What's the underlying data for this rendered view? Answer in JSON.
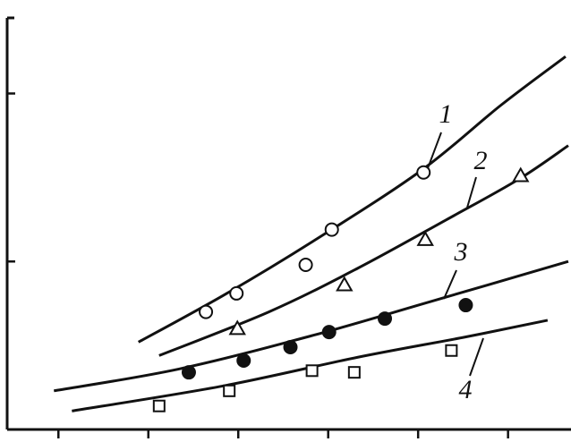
{
  "chart_data": {
    "type": "scatter",
    "xlim": [
      0.43,
      6.7
    ],
    "ylim": [
      0,
      2.45
    ],
    "xticks": [
      1,
      2,
      3,
      4,
      5,
      6
    ],
    "yticks": [
      1,
      2
    ],
    "color": "#111",
    "series": [
      {
        "name": "1",
        "marker": "circle",
        "filled": false,
        "x": [
          2.64,
          2.98,
          3.75,
          4.04,
          5.06
        ],
        "values": [
          0.7,
          0.81,
          0.98,
          1.19,
          1.53
        ],
        "fit_x": [
          1.89,
          2.84,
          3.83,
          5.03,
          5.92,
          6.64
        ],
        "fit_values": [
          0.52,
          0.8,
          1.12,
          1.54,
          1.93,
          2.22
        ]
      },
      {
        "name": "2",
        "marker": "triangle",
        "filled": false,
        "x": [
          2.99,
          4.18,
          5.08,
          6.14
        ],
        "values": [
          0.6,
          0.86,
          1.13,
          1.51
        ],
        "fit_x": [
          2.12,
          3.34,
          4.33,
          5.32,
          6.12,
          6.67
        ],
        "fit_values": [
          0.44,
          0.7,
          0.96,
          1.25,
          1.49,
          1.69
        ]
      },
      {
        "name": "3",
        "marker": "circle",
        "filled": true,
        "x": [
          2.45,
          3.06,
          3.58,
          4.01,
          4.63,
          5.53
        ],
        "values": [
          0.34,
          0.41,
          0.49,
          0.58,
          0.66,
          0.74
        ],
        "fit_x": [
          0.95,
          2.34,
          3.83,
          5.13,
          6.67
        ],
        "fit_values": [
          0.23,
          0.36,
          0.56,
          0.76,
          1.0
        ]
      },
      {
        "name": "4",
        "marker": "square",
        "filled": false,
        "x": [
          2.12,
          2.9,
          3.82,
          4.29,
          5.37
        ],
        "values": [
          0.14,
          0.23,
          0.35,
          0.34,
          0.47
        ],
        "fit_x": [
          1.15,
          2.84,
          4.33,
          5.52,
          6.44
        ],
        "fit_values": [
          0.11,
          0.26,
          0.43,
          0.55,
          0.65
        ]
      }
    ]
  }
}
